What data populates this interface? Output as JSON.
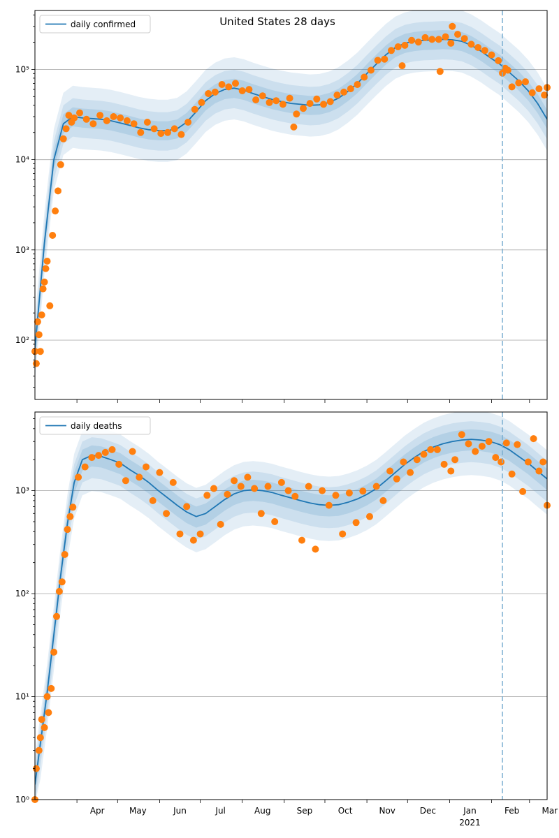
{
  "figure": {
    "title": "United States 28 days",
    "x_tick_labels": [
      "Apr",
      "May",
      "Jun",
      "Jul",
      "Aug",
      "Sep",
      "Oct",
      "Nov",
      "Dec",
      "Jan",
      "Feb",
      "Mar"
    ],
    "x_year_label": "2021",
    "forecast_start": "2021-02-09"
  },
  "colors": {
    "model_line": "#1f77b4",
    "band": "#1f77b4",
    "observed": "#ff7f0e",
    "forecast_line": "#7aaed0",
    "grid": "#b0b0b0"
  },
  "chart_data": [
    {
      "type": "line",
      "title": "United States 28 days",
      "xlabel": "",
      "ylabel": "",
      "xlim": [
        "2020-03-01",
        "2021-03-14"
      ],
      "ylim": [
        22,
        450000
      ],
      "yscale": "log",
      "grid": "y",
      "legend": {
        "position": "top-left",
        "entries": [
          "daily confirmed"
        ]
      },
      "y_tick_labels": [
        "10^2",
        "10^3",
        "10^4",
        "10^5"
      ],
      "model": {
        "name": "daily confirmed",
        "x": [
          "2020-03-01",
          "2020-03-08",
          "2020-03-15",
          "2020-03-22",
          "2020-03-29",
          "2020-04-05",
          "2020-04-12",
          "2020-04-19",
          "2020-04-26",
          "2020-05-03",
          "2020-05-10",
          "2020-05-17",
          "2020-05-24",
          "2020-05-31",
          "2020-06-07",
          "2020-06-14",
          "2020-06-21",
          "2020-06-28",
          "2020-07-05",
          "2020-07-12",
          "2020-07-19",
          "2020-07-26",
          "2020-08-02",
          "2020-08-09",
          "2020-08-16",
          "2020-08-23",
          "2020-08-30",
          "2020-09-06",
          "2020-09-13",
          "2020-09-20",
          "2020-09-27",
          "2020-10-04",
          "2020-10-11",
          "2020-10-18",
          "2020-10-25",
          "2020-11-01",
          "2020-11-08",
          "2020-11-15",
          "2020-11-22",
          "2020-11-29",
          "2020-12-06",
          "2020-12-13",
          "2020-12-20",
          "2020-12-27",
          "2021-01-03",
          "2021-01-10",
          "2021-01-17",
          "2021-01-24",
          "2021-01-31",
          "2021-02-07",
          "2021-02-14",
          "2021-02-21",
          "2021-02-28",
          "2021-03-07",
          "2021-03-14"
        ],
        "y": [
          80,
          1200,
          10000,
          25000,
          30000,
          29000,
          28500,
          28000,
          27000,
          25500,
          24000,
          22500,
          21500,
          21000,
          21000,
          22000,
          26000,
          34000,
          45000,
          54000,
          60000,
          62000,
          59000,
          54000,
          50000,
          46500,
          44000,
          42000,
          41000,
          40000,
          40500,
          43000,
          48000,
          57000,
          70000,
          90000,
          115000,
          145000,
          175000,
          195000,
          205000,
          210000,
          212000,
          215000,
          213000,
          205000,
          185000,
          160000,
          135000,
          115000,
          93000,
          75000,
          58000,
          42000,
          28000
        ]
      },
      "bands": [
        {
          "name": "outer",
          "lower_factor": 0.45,
          "upper_factor": 2.2
        },
        {
          "name": "middle",
          "lower_factor": 0.6,
          "upper_factor": 1.6
        },
        {
          "name": "inner",
          "lower_factor": 0.78,
          "upper_factor": 1.27
        }
      ],
      "observed": {
        "name": "daily confirmed observations",
        "x": [
          "2020-03-01",
          "2020-03-02",
          "2020-03-03",
          "2020-03-04",
          "2020-03-05",
          "2020-03-06",
          "2020-03-07",
          "2020-03-08",
          "2020-03-09",
          "2020-03-10",
          "2020-03-12",
          "2020-03-14",
          "2020-03-16",
          "2020-03-18",
          "2020-03-20",
          "2020-03-22",
          "2020-03-24",
          "2020-03-26",
          "2020-03-28",
          "2020-03-30",
          "2020-04-03",
          "2020-04-08",
          "2020-04-13",
          "2020-04-18",
          "2020-04-23",
          "2020-04-28",
          "2020-05-03",
          "2020-05-08",
          "2020-05-13",
          "2020-05-18",
          "2020-05-23",
          "2020-05-28",
          "2020-06-02",
          "2020-06-07",
          "2020-06-12",
          "2020-06-17",
          "2020-06-22",
          "2020-06-27",
          "2020-07-02",
          "2020-07-07",
          "2020-07-12",
          "2020-07-17",
          "2020-07-22",
          "2020-07-27",
          "2020-08-01",
          "2020-08-06",
          "2020-08-11",
          "2020-08-16",
          "2020-08-21",
          "2020-08-26",
          "2020-08-31",
          "2020-09-05",
          "2020-09-08",
          "2020-09-10",
          "2020-09-15",
          "2020-09-20",
          "2020-09-25",
          "2020-09-30",
          "2020-10-05",
          "2020-10-10",
          "2020-10-15",
          "2020-10-20",
          "2020-10-25",
          "2020-10-30",
          "2020-11-04",
          "2020-11-09",
          "2020-11-14",
          "2020-11-19",
          "2020-11-24",
          "2020-11-27",
          "2020-11-29",
          "2020-12-04",
          "2020-12-09",
          "2020-12-14",
          "2020-12-19",
          "2020-12-24",
          "2020-12-25",
          "2020-12-29",
          "2021-01-02",
          "2021-01-03",
          "2021-01-07",
          "2021-01-12",
          "2021-01-17",
          "2021-01-22",
          "2021-01-27",
          "2021-02-01",
          "2021-02-06",
          "2021-02-09",
          "2021-02-11",
          "2021-02-13",
          "2021-02-16",
          "2021-02-21",
          "2021-02-26",
          "2021-03-03",
          "2021-03-08",
          "2021-03-12",
          "2021-03-14"
        ],
        "y": [
          75,
          55,
          160,
          115,
          75,
          190,
          370,
          440,
          620,
          750,
          240,
          1450,
          2700,
          4500,
          8800,
          17000,
          22000,
          31000,
          26000,
          29000,
          33000,
          28000,
          25000,
          31000,
          27000,
          30000,
          29000,
          27000,
          25000,
          20000,
          26000,
          22000,
          19500,
          20000,
          22000,
          19000,
          26000,
          36000,
          43000,
          54000,
          56000,
          68000,
          64000,
          70000,
          58000,
          60000,
          46000,
          51000,
          43000,
          45000,
          41000,
          48000,
          23000,
          32000,
          37000,
          42000,
          47000,
          41000,
          44000,
          52000,
          56000,
          61000,
          68000,
          82000,
          98000,
          126000,
          130000,
          162000,
          178000,
          110000,
          185000,
          210000,
          201000,
          225000,
          215000,
          215000,
          95000,
          230000,
          195000,
          300000,
          245000,
          220000,
          190000,
          175000,
          162000,
          145000,
          125000,
          91000,
          103000,
          98000,
          64000,
          71000,
          73000,
          55000,
          61000,
          52000,
          63000
        ]
      }
    },
    {
      "type": "line",
      "title": "",
      "xlabel": "",
      "ylabel": "",
      "xlim": [
        "2020-03-01",
        "2021-03-14"
      ],
      "ylim": [
        1,
        5800
      ],
      "yscale": "log",
      "grid": "y",
      "legend": {
        "position": "top-left",
        "entries": [
          "daily deaths"
        ]
      },
      "y_tick_labels": [
        "10^0",
        "10^1",
        "10^2",
        "10^3"
      ],
      "model": {
        "name": "daily deaths",
        "x": [
          "2020-03-01",
          "2020-03-05",
          "2020-03-10",
          "2020-03-15",
          "2020-03-20",
          "2020-03-25",
          "2020-03-30",
          "2020-04-05",
          "2020-04-12",
          "2020-04-19",
          "2020-04-26",
          "2020-05-03",
          "2020-05-10",
          "2020-05-17",
          "2020-05-24",
          "2020-05-31",
          "2020-06-07",
          "2020-06-14",
          "2020-06-21",
          "2020-06-28",
          "2020-07-05",
          "2020-07-12",
          "2020-07-19",
          "2020-07-26",
          "2020-08-02",
          "2020-08-09",
          "2020-08-16",
          "2020-08-23",
          "2020-08-30",
          "2020-09-06",
          "2020-09-13",
          "2020-09-20",
          "2020-09-27",
          "2020-10-04",
          "2020-10-11",
          "2020-10-18",
          "2020-10-25",
          "2020-11-01",
          "2020-11-08",
          "2020-11-15",
          "2020-11-22",
          "2020-11-29",
          "2020-12-06",
          "2020-12-13",
          "2020-12-20",
          "2020-12-27",
          "2021-01-03",
          "2021-01-10",
          "2021-01-17",
          "2021-01-24",
          "2021-01-31",
          "2021-02-07",
          "2021-02-14",
          "2021-02-21",
          "2021-02-28",
          "2021-03-07",
          "2021-03-14"
        ],
        "y": [
          1.4,
          3.5,
          11,
          40,
          150,
          480,
          1200,
          2000,
          2200,
          2150,
          2000,
          1850,
          1600,
          1400,
          1200,
          1000,
          850,
          720,
          620,
          560,
          600,
          700,
          820,
          930,
          1000,
          1020,
          1000,
          960,
          900,
          850,
          800,
          760,
          730,
          720,
          730,
          770,
          830,
          920,
          1050,
          1250,
          1500,
          1800,
          2100,
          2400,
          2650,
          2850,
          3000,
          3100,
          3150,
          3100,
          3000,
          2800,
          2500,
          2150,
          1850,
          1550,
          1300
        ]
      },
      "bands": [
        {
          "name": "outer",
          "lower_factor": 0.45,
          "upper_factor": 1.9
        },
        {
          "name": "middle",
          "lower_factor": 0.6,
          "upper_factor": 1.5
        },
        {
          "name": "inner",
          "lower_factor": 0.78,
          "upper_factor": 1.25
        }
      ],
      "observed": {
        "name": "daily deaths observations",
        "x": [
          "2020-03-01",
          "2020-03-02",
          "2020-03-04",
          "2020-03-05",
          "2020-03-06",
          "2020-03-08",
          "2020-03-10",
          "2020-03-11",
          "2020-03-13",
          "2020-03-15",
          "2020-03-17",
          "2020-03-19",
          "2020-03-21",
          "2020-03-23",
          "2020-03-25",
          "2020-03-27",
          "2020-03-29",
          "2020-04-02",
          "2020-04-07",
          "2020-04-12",
          "2020-04-17",
          "2020-04-22",
          "2020-04-27",
          "2020-05-02",
          "2020-05-07",
          "2020-05-12",
          "2020-05-17",
          "2020-05-22",
          "2020-05-27",
          "2020-06-01",
          "2020-06-06",
          "2020-06-11",
          "2020-06-16",
          "2020-06-21",
          "2020-06-26",
          "2020-07-01",
          "2020-07-06",
          "2020-07-11",
          "2020-07-16",
          "2020-07-21",
          "2020-07-26",
          "2020-07-31",
          "2020-08-05",
          "2020-08-10",
          "2020-08-15",
          "2020-08-20",
          "2020-08-25",
          "2020-08-30",
          "2020-09-04",
          "2020-09-09",
          "2020-09-14",
          "2020-09-19",
          "2020-09-24",
          "2020-09-29",
          "2020-10-04",
          "2020-10-09",
          "2020-10-14",
          "2020-10-19",
          "2020-10-24",
          "2020-10-29",
          "2020-11-03",
          "2020-11-08",
          "2020-11-13",
          "2020-11-18",
          "2020-11-23",
          "2020-11-28",
          "2020-12-03",
          "2020-12-08",
          "2020-12-13",
          "2020-12-18",
          "2020-12-23",
          "2020-12-28",
          "2021-01-02",
          "2021-01-05",
          "2021-01-10",
          "2021-01-15",
          "2021-01-20",
          "2021-01-25",
          "2021-01-30",
          "2021-02-04",
          "2021-02-08",
          "2021-02-12",
          "2021-02-16",
          "2021-02-20",
          "2021-02-24",
          "2021-02-28",
          "2021-03-04",
          "2021-03-08",
          "2021-03-11",
          "2021-03-14"
        ],
        "y": [
          1,
          2,
          3,
          4,
          6,
          5,
          10,
          7,
          12,
          27,
          60,
          105,
          130,
          240,
          420,
          560,
          690,
          1350,
          1700,
          2100,
          2200,
          2350,
          2500,
          1800,
          1250,
          2400,
          1350,
          1700,
          800,
          1500,
          600,
          1200,
          380,
          700,
          330,
          380,
          900,
          1050,
          470,
          920,
          1250,
          1100,
          1350,
          1050,
          600,
          1100,
          500,
          1200,
          1000,
          880,
          330,
          1100,
          270,
          1000,
          720,
          900,
          380,
          950,
          490,
          990,
          560,
          1100,
          800,
          1550,
          1300,
          1900,
          1500,
          2000,
          2250,
          2500,
          2500,
          1800,
          1550,
          2000,
          3500,
          2850,
          2400,
          2700,
          3000,
          2100,
          1900,
          2900,
          1450,
          2800,
          980,
          1900,
          3200,
          1550,
          1900,
          720
        ]
      }
    }
  ]
}
